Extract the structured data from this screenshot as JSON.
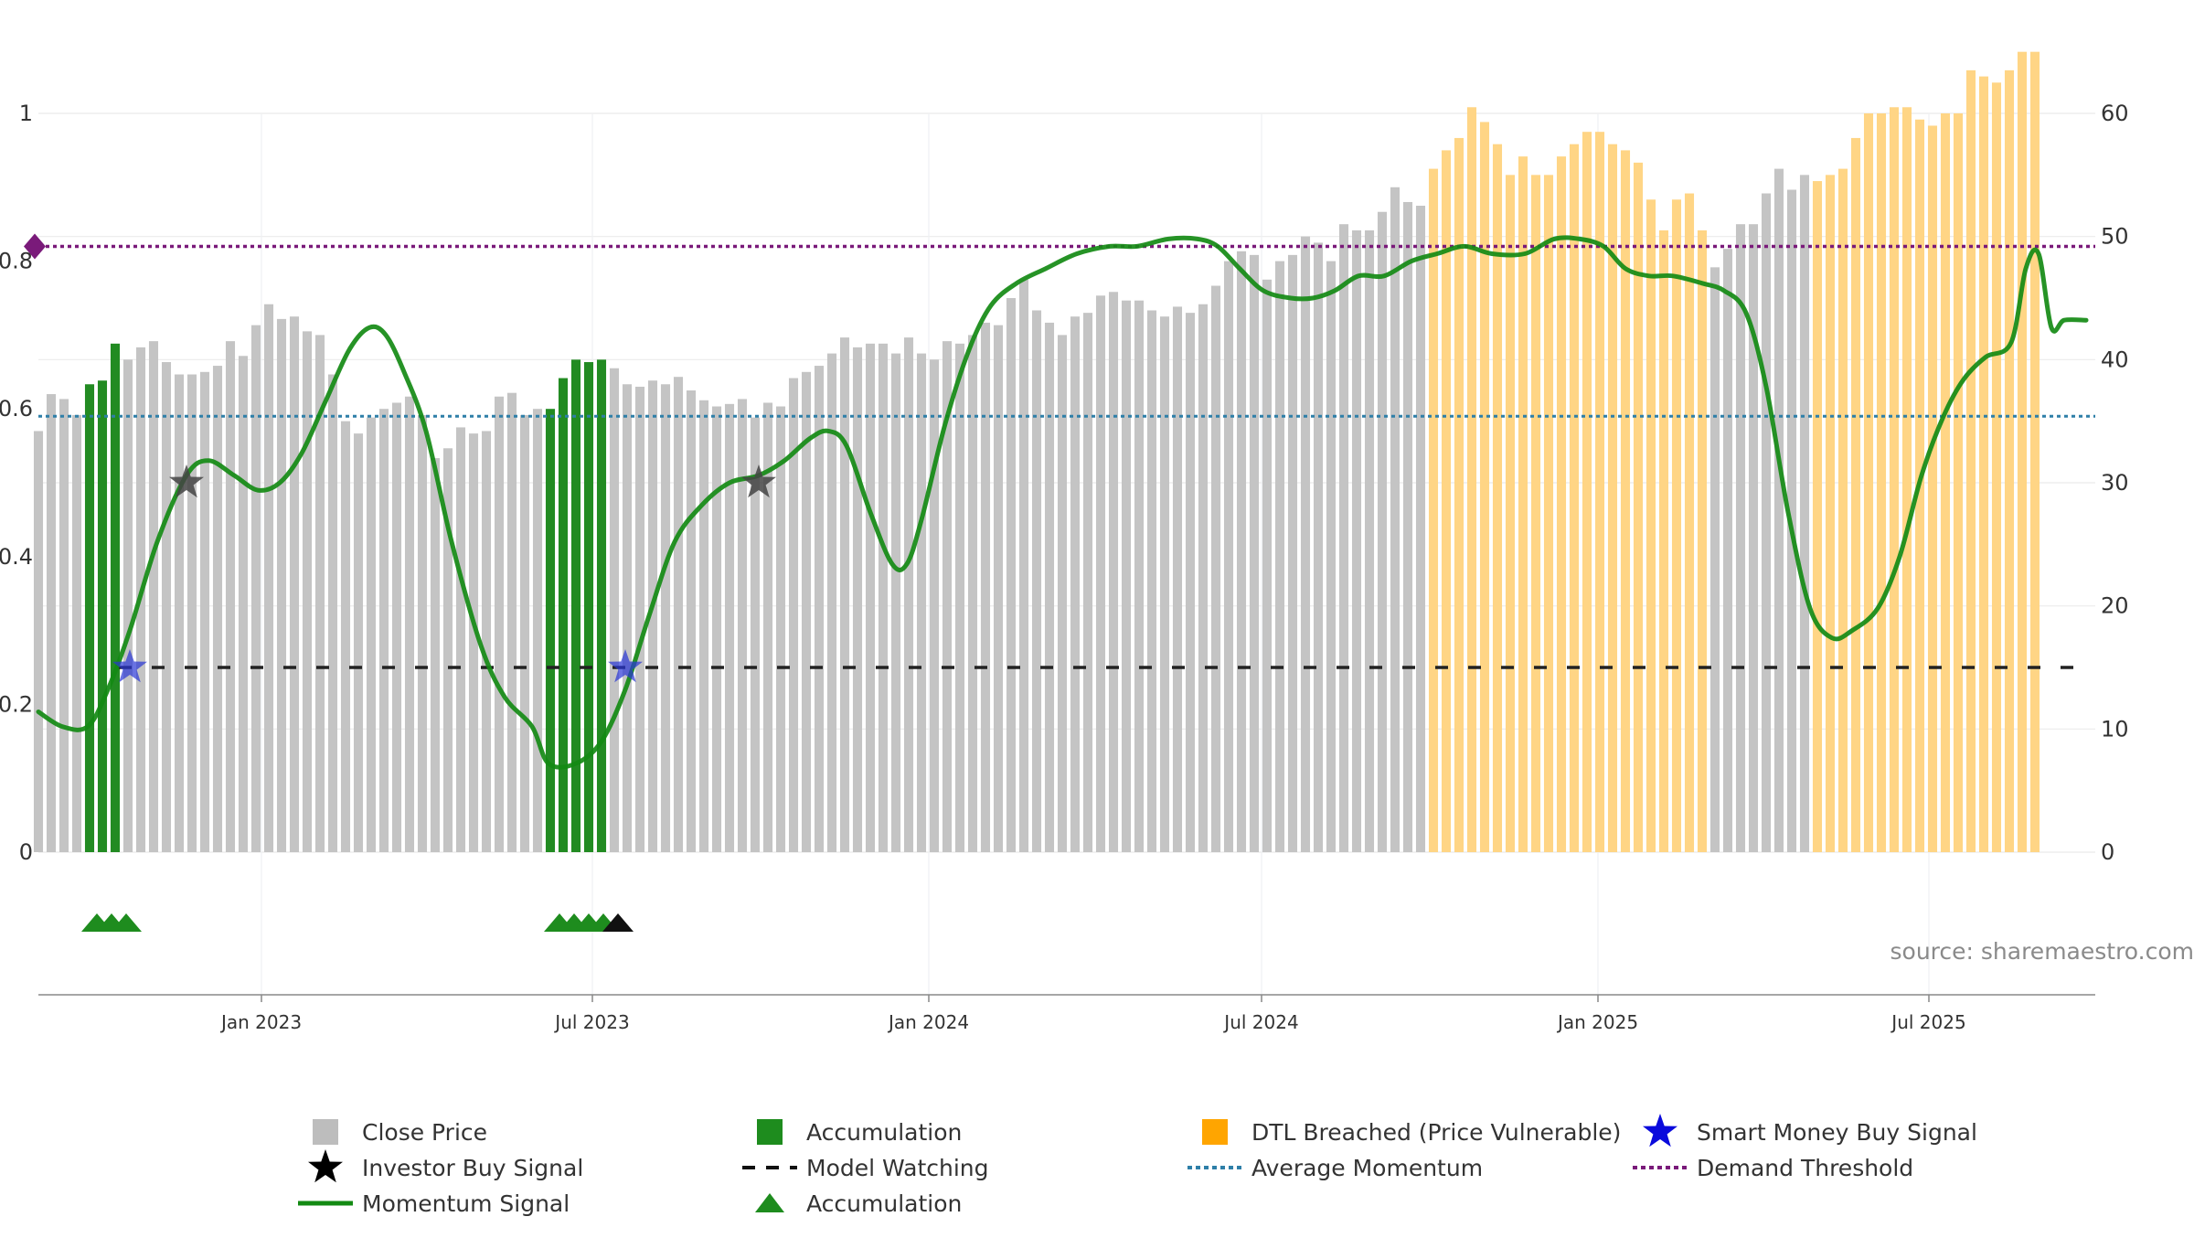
{
  "chart_data": {
    "type": "bar",
    "title": "",
    "xlabel": "",
    "ylabel": "",
    "y_left_ticks": [
      "0",
      "0.2",
      "0.4",
      "0.6",
      "0.8",
      "1"
    ],
    "y_left_range": [
      0,
      1
    ],
    "y_right_ticks": [
      "0",
      "10",
      "20",
      "30",
      "40",
      "50",
      "60"
    ],
    "y_right_range": [
      0,
      60
    ],
    "x_range": [
      "2022-09-01",
      "2025-09-30"
    ],
    "x_ticks": [
      {
        "date": "2023-01-01",
        "label": "Jan 2023"
      },
      {
        "date": "2023-07-01",
        "label": "Jul 2023"
      },
      {
        "date": "2024-01-01",
        "label": "Jan 2024"
      },
      {
        "date": "2024-07-01",
        "label": "Jul 2024"
      },
      {
        "date": "2025-01-01",
        "label": "Jan 2025"
      },
      {
        "date": "2025-07-01",
        "label": "Jul 2025"
      }
    ],
    "grid": true,
    "legend_position": "bottom",
    "source": "source: sharemaestro.com",
    "demand_threshold": 0.82,
    "average_momentum": 0.59,
    "model_watching_level": 0.25,
    "close_price": {
      "start": "2022-09-01",
      "step_days": 7,
      "values": [
        34.2,
        37.2,
        36.8,
        35.5,
        38.0,
        38.3,
        41.3,
        40.0,
        41.0,
        41.5,
        39.8,
        38.8,
        38.8,
        39.0,
        39.5,
        41.5,
        40.3,
        42.8,
        44.5,
        43.3,
        43.5,
        42.3,
        42.0,
        38.8,
        35.0,
        34.0,
        35.3,
        36.0,
        36.5,
        37.0,
        35.5,
        32.0,
        32.8,
        34.5,
        34.0,
        34.2,
        37.0,
        37.3,
        35.5,
        36.0,
        36.0,
        38.5,
        40.0,
        39.8,
        40.0,
        39.3,
        38.0,
        37.8,
        38.3,
        38.0,
        38.6,
        37.5,
        36.7,
        36.2,
        36.4,
        36.8,
        35.3,
        36.5,
        36.2,
        38.5,
        39.0,
        39.5,
        40.5,
        41.8,
        41.0,
        41.3,
        41.3,
        40.5,
        41.8,
        40.5,
        40.0,
        41.5,
        41.3,
        42.0,
        43.0,
        42.8,
        45.0,
        46.5,
        44.0,
        43.0,
        42.0,
        43.5,
        43.8,
        45.2,
        45.5,
        44.8,
        44.8,
        44.0,
        43.5,
        44.3,
        43.8,
        44.5,
        46.0,
        48.0,
        48.8,
        48.5,
        46.5,
        48.0,
        48.5,
        50.0,
        49.5,
        48.0,
        51.0,
        50.5,
        50.5,
        52.0,
        54.0,
        52.8,
        52.5,
        55.5,
        57.0,
        58.0,
        60.5,
        59.3,
        57.5,
        55.0,
        56.5,
        55.0,
        55.0,
        56.5,
        57.5,
        58.5,
        58.5,
        57.5,
        57.0,
        56.0,
        53.0,
        50.5,
        53.0,
        53.5,
        50.5,
        47.5,
        49.0,
        51.0,
        51.0,
        53.5,
        55.5,
        53.8,
        55.0,
        54.5,
        55.0,
        55.5,
        58.0,
        60.0,
        60.0,
        60.5,
        60.5,
        59.5,
        59.0,
        60.0,
        60.0,
        63.5,
        63.0,
        62.5,
        63.5,
        65.0,
        65.0
      ],
      "segments": [
        {
          "from": 0,
          "to": 3,
          "state": "close"
        },
        {
          "from": 4,
          "to": 6,
          "state": "accumulation"
        },
        {
          "from": 7,
          "to": 39,
          "state": "close"
        },
        {
          "from": 40,
          "to": 44,
          "state": "accumulation"
        },
        {
          "from": 45,
          "to": 108,
          "state": "close"
        },
        {
          "from": 109,
          "to": 130,
          "state": "dtl"
        },
        {
          "from": 131,
          "to": 138,
          "state": "close"
        },
        {
          "from": 139,
          "to": 158,
          "state": "dtl"
        }
      ]
    },
    "momentum_signal": [
      [
        "2022-09-01",
        0.19
      ],
      [
        "2022-09-14",
        0.17
      ],
      [
        "2022-09-28",
        0.17
      ],
      [
        "2022-10-09",
        0.22
      ],
      [
        "2022-10-21",
        0.3
      ],
      [
        "2022-11-05",
        0.42
      ],
      [
        "2022-11-21",
        0.51
      ],
      [
        "2022-12-03",
        0.53
      ],
      [
        "2022-12-17",
        0.51
      ],
      [
        "2022-12-30",
        0.49
      ],
      [
        "2023-01-11",
        0.5
      ],
      [
        "2023-01-23",
        0.54
      ],
      [
        "2023-02-05",
        0.61
      ],
      [
        "2023-02-18",
        0.68
      ],
      [
        "2023-03-01",
        0.71
      ],
      [
        "2023-03-10",
        0.7
      ],
      [
        "2023-03-20",
        0.65
      ],
      [
        "2023-04-01",
        0.57
      ],
      [
        "2023-04-15",
        0.42
      ],
      [
        "2023-05-01",
        0.28
      ],
      [
        "2023-05-14",
        0.21
      ],
      [
        "2023-05-29",
        0.17
      ],
      [
        "2023-06-07",
        0.12
      ],
      [
        "2023-06-22",
        0.12
      ],
      [
        "2023-07-06",
        0.15
      ],
      [
        "2023-07-19",
        0.22
      ],
      [
        "2023-08-01",
        0.32
      ],
      [
        "2023-08-15",
        0.42
      ],
      [
        "2023-08-30",
        0.47
      ],
      [
        "2023-09-14",
        0.5
      ],
      [
        "2023-09-30",
        0.51
      ],
      [
        "2023-10-14",
        0.53
      ],
      [
        "2023-10-28",
        0.56
      ],
      [
        "2023-11-07",
        0.57
      ],
      [
        "2023-11-17",
        0.55
      ],
      [
        "2023-11-30",
        0.46
      ],
      [
        "2023-12-12",
        0.39
      ],
      [
        "2023-12-20",
        0.39
      ],
      [
        "2023-12-28",
        0.45
      ],
      [
        "2024-01-10",
        0.58
      ],
      [
        "2024-01-23",
        0.68
      ],
      [
        "2024-02-04",
        0.74
      ],
      [
        "2024-02-18",
        0.77
      ],
      [
        "2024-03-05",
        0.79
      ],
      [
        "2024-03-22",
        0.81
      ],
      [
        "2024-04-09",
        0.82
      ],
      [
        "2024-04-24",
        0.82
      ],
      [
        "2024-05-11",
        0.83
      ],
      [
        "2024-05-27",
        0.83
      ],
      [
        "2024-06-07",
        0.82
      ],
      [
        "2024-06-19",
        0.79
      ],
      [
        "2024-07-02",
        0.76
      ],
      [
        "2024-07-17",
        0.75
      ],
      [
        "2024-07-29",
        0.75
      ],
      [
        "2024-08-10",
        0.76
      ],
      [
        "2024-08-23",
        0.78
      ],
      [
        "2024-09-06",
        0.78
      ],
      [
        "2024-09-21",
        0.8
      ],
      [
        "2024-10-05",
        0.81
      ],
      [
        "2024-10-20",
        0.82
      ],
      [
        "2024-11-04",
        0.81
      ],
      [
        "2024-11-22",
        0.81
      ],
      [
        "2024-12-08",
        0.83
      ],
      [
        "2024-12-22",
        0.83
      ],
      [
        "2025-01-04",
        0.82
      ],
      [
        "2025-01-16",
        0.79
      ],
      [
        "2025-01-29",
        0.78
      ],
      [
        "2025-02-11",
        0.78
      ],
      [
        "2025-02-27",
        0.77
      ],
      [
        "2025-03-11",
        0.76
      ],
      [
        "2025-03-23",
        0.73
      ],
      [
        "2025-04-03",
        0.63
      ],
      [
        "2025-04-15",
        0.46
      ],
      [
        "2025-04-27",
        0.33
      ],
      [
        "2025-05-09",
        0.29
      ],
      [
        "2025-05-20",
        0.3
      ],
      [
        "2025-06-03",
        0.33
      ],
      [
        "2025-06-15",
        0.4
      ],
      [
        "2025-06-27",
        0.51
      ],
      [
        "2025-07-09",
        0.59
      ],
      [
        "2025-07-20",
        0.64
      ],
      [
        "2025-08-01",
        0.67
      ],
      [
        "2025-08-15",
        0.69
      ],
      [
        "2025-08-23",
        0.79
      ],
      [
        "2025-08-30",
        0.81
      ],
      [
        "2025-09-06",
        0.71
      ],
      [
        "2025-09-13",
        0.72
      ],
      [
        "2025-09-25",
        0.72
      ]
    ],
    "investor_buy_signals": [
      {
        "date": "2022-11-21",
        "value": 0.5
      },
      {
        "date": "2023-09-30",
        "value": 0.5
      }
    ],
    "smart_money_buy_signals": [
      {
        "date": "2022-10-21",
        "value": 0.25
      },
      {
        "date": "2023-07-19",
        "value": 0.25
      }
    ],
    "accumulation_markers": [
      {
        "date": "2022-10-03",
        "color": "#1e8c1e"
      },
      {
        "date": "2022-10-11",
        "color": "#1e8c1e"
      },
      {
        "date": "2022-10-19",
        "color": "#1e8c1e"
      },
      {
        "date": "2023-06-13",
        "color": "#1e8c1e"
      },
      {
        "date": "2023-06-21",
        "color": "#1e8c1e"
      },
      {
        "date": "2023-06-29",
        "color": "#1e8c1e"
      },
      {
        "date": "2023-07-07",
        "color": "#1e8c1e"
      },
      {
        "date": "2023-07-15",
        "color": "#111111"
      }
    ],
    "colors": {
      "close": "#c4c4c4",
      "accumulation": "#228b22",
      "dtl": "#ffd585",
      "dtl_legend": "#ffa500",
      "momentum": "#138a13",
      "average_momentum": "#2e7fa8",
      "demand_threshold": "#7a1a7a",
      "model_watching": "#222222",
      "smart_money": "#2a36d6",
      "investor": "#444444"
    },
    "legend": [
      {
        "label": "Close Price",
        "symbol": "square",
        "color": "#bdbdbd"
      },
      {
        "label": "Accumulation",
        "symbol": "square",
        "color": "#1e8c1e"
      },
      {
        "label": "DTL Breached (Price Vulnerable)",
        "symbol": "square",
        "color": "#ffa500"
      },
      {
        "label": "Smart Money Buy Signal",
        "symbol": "star",
        "color": "#0a0adc"
      },
      {
        "label": "Investor Buy Signal",
        "symbol": "star",
        "color": "#000000"
      },
      {
        "label": "Model Watching",
        "symbol": "dash",
        "color": "#111111"
      },
      {
        "label": "Average Momentum",
        "symbol": "dot",
        "color": "#2e7fa8"
      },
      {
        "label": "Demand Threshold",
        "symbol": "dot",
        "color": "#7a1a7a"
      },
      {
        "label": "Momentum Signal",
        "symbol": "line",
        "color": "#138a13"
      },
      {
        "label": "Accumulation",
        "symbol": "triangle",
        "color": "#1e8c1e"
      }
    ]
  }
}
